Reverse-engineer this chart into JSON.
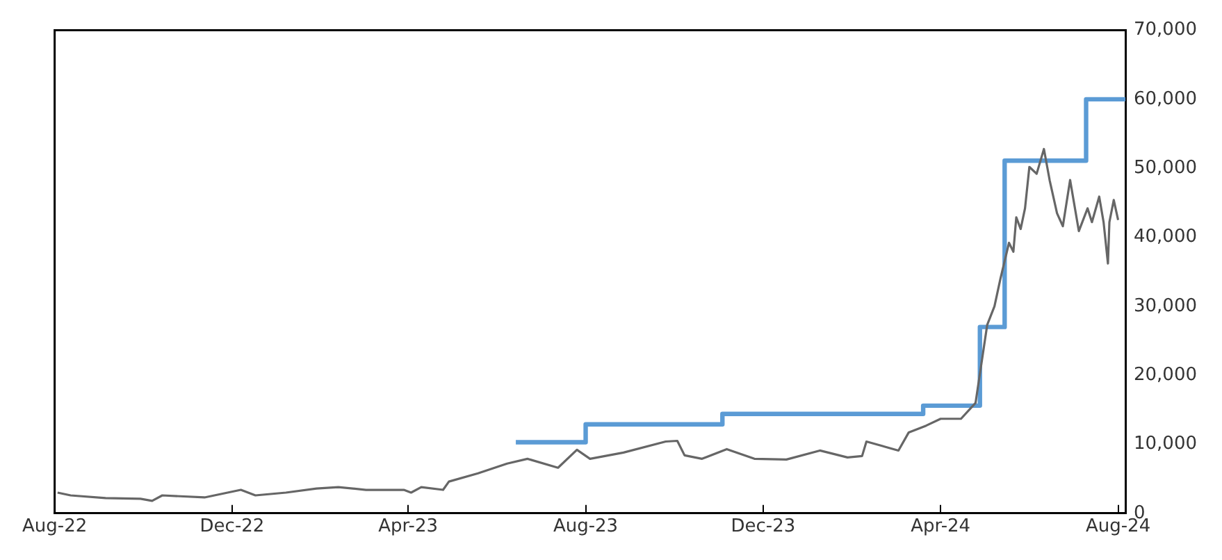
{
  "chart_data": {
    "type": "line",
    "xlim": [
      "2022-08-01",
      "2024-08-06"
    ],
    "ylim": [
      0,
      70000
    ],
    "xticks": [
      {
        "value": "2022-08-01",
        "label": "Aug-22"
      },
      {
        "value": "2022-12-01",
        "label": "Dec-22"
      },
      {
        "value": "2023-04-01",
        "label": "Apr-23"
      },
      {
        "value": "2023-08-01",
        "label": "Aug-23"
      },
      {
        "value": "2023-12-01",
        "label": "Dec-23"
      },
      {
        "value": "2024-04-01",
        "label": "Apr-24"
      },
      {
        "value": "2024-08-01",
        "label": "Aug-24"
      }
    ],
    "yticks": [
      {
        "value": 0,
        "label": "0"
      },
      {
        "value": 10000,
        "label": "10,000"
      },
      {
        "value": 20000,
        "label": "20,000"
      },
      {
        "value": 30000,
        "label": "30,000"
      },
      {
        "value": 40000,
        "label": "40,000"
      },
      {
        "value": 50000,
        "label": "50,000"
      },
      {
        "value": 60000,
        "label": "60,000"
      },
      {
        "value": 70000,
        "label": "70,000"
      }
    ],
    "grid": false,
    "legend": false,
    "series": [
      {
        "type": "line",
        "color": "#666666",
        "x": [
          "2022-08-03",
          "2022-08-12",
          "2022-09-05",
          "2022-09-29",
          "2022-10-07",
          "2022-10-14",
          "2022-11-12",
          "2022-12-07",
          "2022-12-17",
          "2023-01-07",
          "2023-01-28",
          "2023-02-12",
          "2023-03-03",
          "2023-03-29",
          "2023-04-03",
          "2023-04-10",
          "2023-04-25",
          "2023-04-29",
          "2023-05-19",
          "2023-06-08",
          "2023-06-22",
          "2023-07-13",
          "2023-07-26",
          "2023-08-04",
          "2023-08-27",
          "2023-09-25",
          "2023-10-03",
          "2023-10-08",
          "2023-10-20",
          "2023-11-06",
          "2023-11-25",
          "2023-12-17",
          "2024-01-09",
          "2024-01-28",
          "2024-02-07",
          "2024-02-10",
          "2024-03-03",
          "2024-03-10",
          "2024-03-22",
          "2024-04-01",
          "2024-04-15",
          "2024-04-25",
          "2024-05-03",
          "2024-05-08",
          "2024-05-12",
          "2024-05-18",
          "2024-05-21",
          "2024-05-23",
          "2024-05-26",
          "2024-05-29",
          "2024-06-01",
          "2024-06-06",
          "2024-06-11",
          "2024-06-15",
          "2024-06-20",
          "2024-06-24",
          "2024-06-29",
          "2024-07-05",
          "2024-07-11",
          "2024-07-14",
          "2024-07-19",
          "2024-07-22",
          "2024-07-25",
          "2024-07-26",
          "2024-07-29",
          "2024-08-01"
        ],
        "values": [
          3000,
          2600,
          2200,
          2100,
          1800,
          2600,
          2300,
          3400,
          2600,
          3000,
          3600,
          3800,
          3400,
          3400,
          3000,
          3800,
          3400,
          4600,
          5800,
          7200,
          7900,
          6600,
          9200,
          7900,
          8800,
          10400,
          10500,
          8400,
          7900,
          9300,
          7900,
          7800,
          9100,
          8100,
          8300,
          10400,
          9100,
          11700,
          12700,
          13700,
          13700,
          16000,
          27300,
          30000,
          33900,
          39200,
          37900,
          42900,
          41200,
          44200,
          50200,
          49200,
          52800,
          48200,
          43500,
          41600,
          48300,
          40900,
          44200,
          42200,
          45900,
          42200,
          36200,
          42200,
          45400,
          42500
        ]
      },
      {
        "type": "step",
        "color": "#5b9bd5",
        "x": [
          "2023-06-14",
          "2023-08-01",
          "2023-11-03",
          "2024-03-20",
          "2024-04-28",
          "2024-05-15",
          "2024-07-10",
          "2024-08-06"
        ],
        "values": [
          10300,
          12900,
          14400,
          15600,
          27000,
          51100,
          60000,
          60000
        ]
      }
    ]
  }
}
